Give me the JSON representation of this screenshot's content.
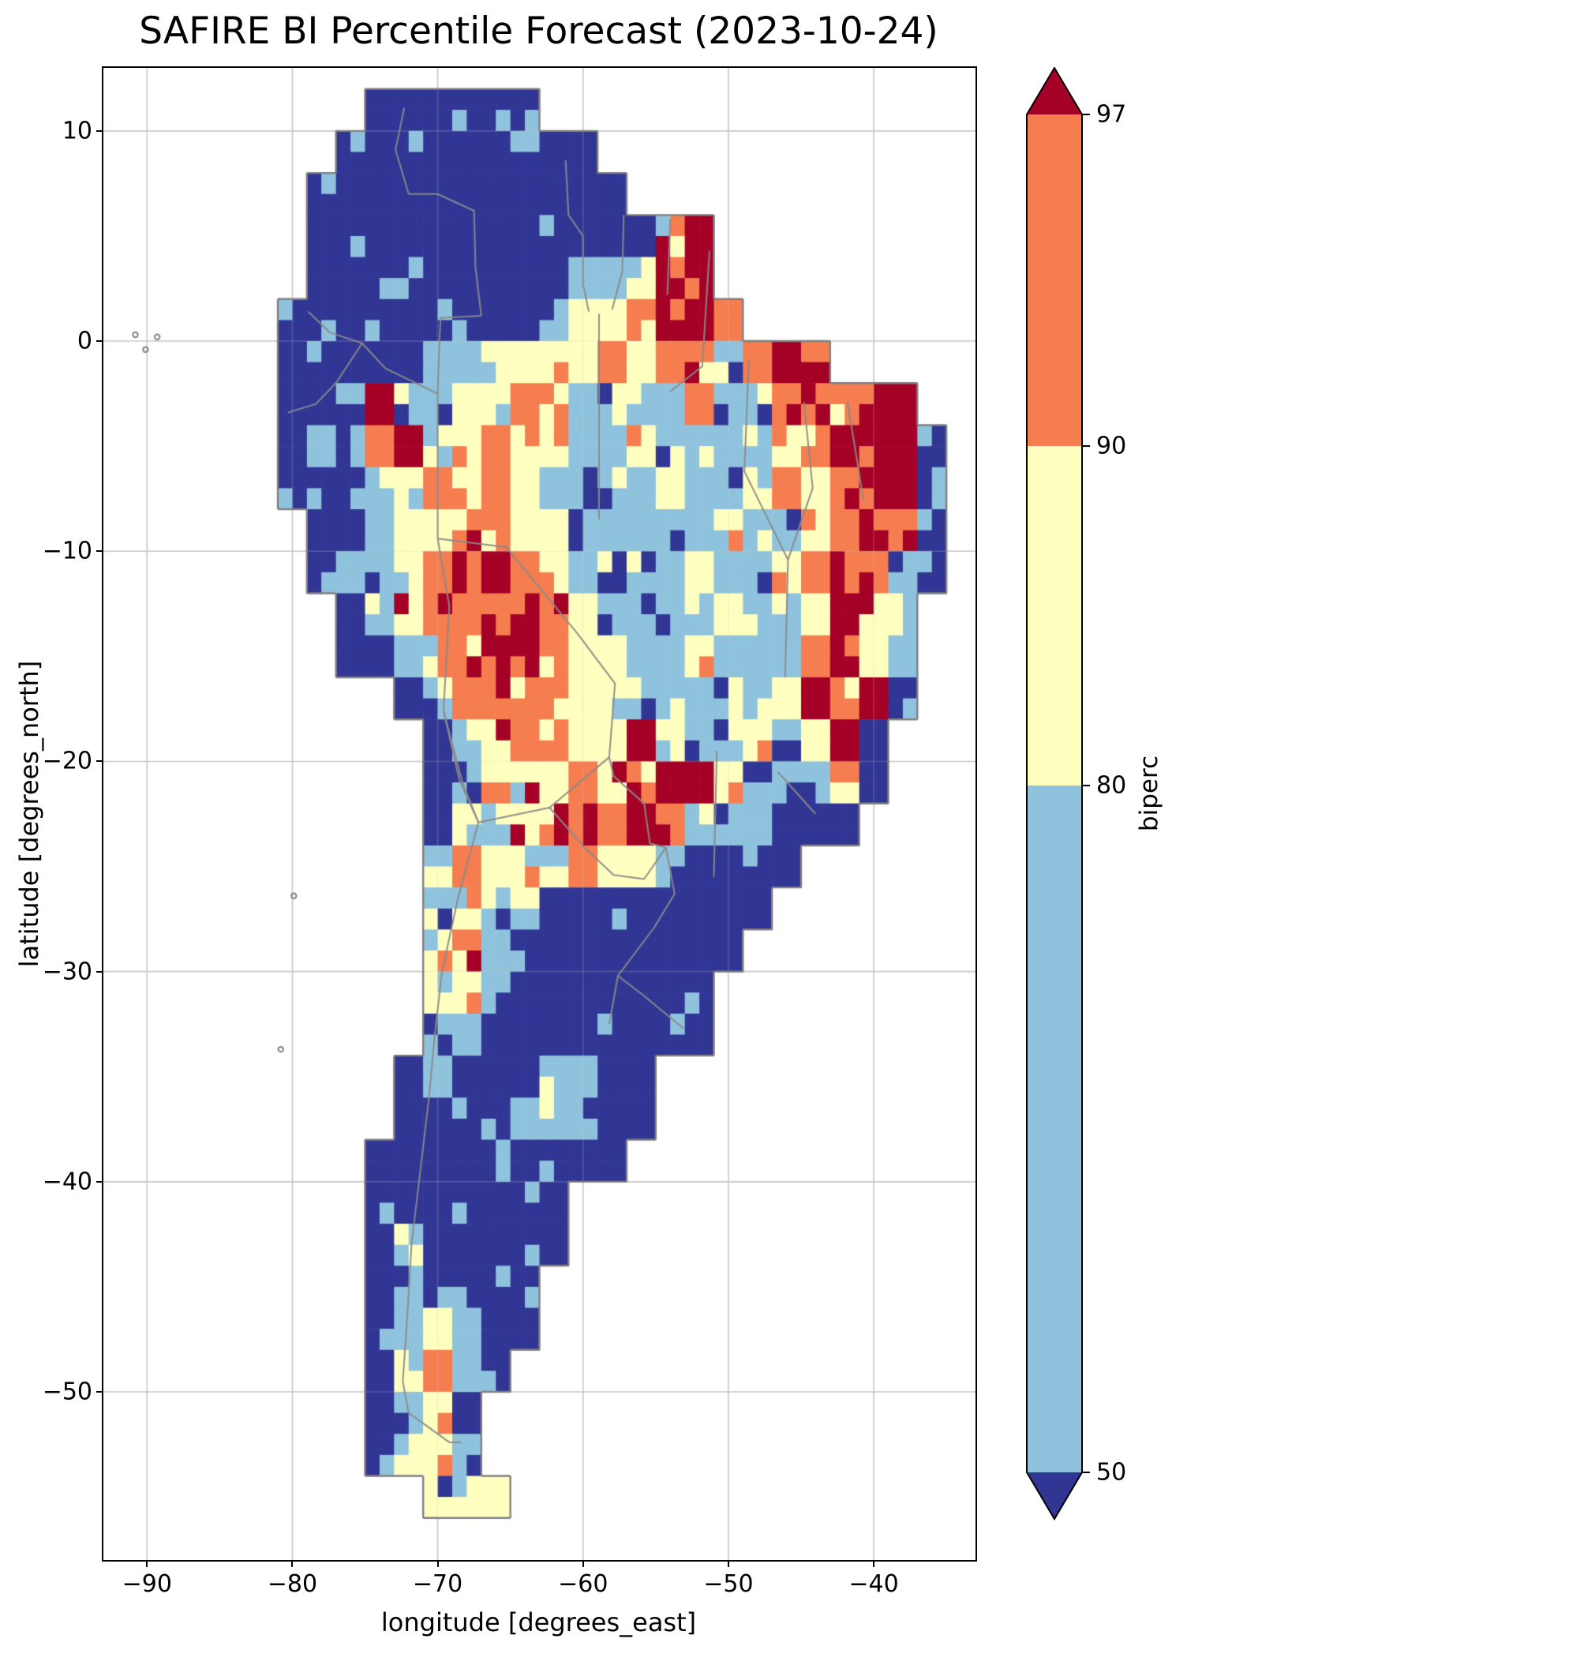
{
  "chart_data": {
    "type": "heatmap",
    "title": "SAFIRE BI Percentile Forecast (2023-10-24)",
    "xlabel": "longitude [degrees_east]",
    "ylabel": "latitude [degrees_north]",
    "xlim": [
      -93,
      -33
    ],
    "ylim": [
      -58,
      13
    ],
    "grid": true,
    "x_ticks": {
      "values": [
        -90,
        -80,
        -70,
        -60,
        -50,
        -40
      ],
      "labels": [
        "−90",
        "−80",
        "−70",
        "−60",
        "−50",
        "−40"
      ]
    },
    "y_ticks": {
      "values": [
        10,
        0,
        -10,
        -20,
        -30,
        -40,
        -50
      ],
      "labels": [
        "10",
        "0",
        "−10",
        "−20",
        "−30",
        "−40",
        "−50"
      ]
    },
    "colorbar": {
      "label": "biperc",
      "levels": [
        50,
        80,
        90,
        97
      ],
      "tick_labels": [
        "50",
        "80",
        "90",
        "97"
      ],
      "extend": "both",
      "colors": {
        "below_50": "#313695",
        "50_80": "#8fc3dd",
        "80_90": "#ffffbf",
        "90_97": "#f57d4f",
        "above_97": "#a50026"
      }
    },
    "map": {
      "region": "South America",
      "coastline_color": "#808080",
      "border_color": "#8a8a8a",
      "grid_color": "#c9c9c9",
      "cell_deg": 2,
      "origin": {
        "lon": -93,
        "lat": 12
      },
      "classes": {
        ".": "ocean",
        "0": "below_50",
        "1": "50_80",
        "2": "80_90",
        "3": "90_97",
        "4": "above_97"
      },
      "grid_rows": [
        ".........000000...............",
        "........000000000.............",
        ".......00000000000............",
        ".......00000000000024.........",
        ".......00000000011244.........",
        "......0000000001223443........",
        "......0000011222232331343.....",
        "......0014112232111131134344..",
        "......01134123221121111234440.",
        "......00012323211112112323440.",
        ".......0012233221111121123430.",
        ".......0112334321111211234310.",
        "........01233343211112112421..",
        "........00123443221121113421..",
        "..........013333221111124340..",
        "...........0123322421121240...",
        "...........0122232344211120...",
        "...........021233343211000....",
        "...........1322232210000......",
        "...........121100000000.......",
        "...........23100000000........",
        "...........2210000000.........",
        "...........1100000000.........",
        "..........010001100...........",
        "..........000011100...........",
        ".........000000000............",
        ".........0000000..............",
        ".........0100000..............",
        ".........011000...............",
        ".........012100...............",
        ".........02310................",
        ".........0120.................",
        ".........0221.................",
        "...........122................",
        ".............................."
      ],
      "borders": [
        [
          [
            -72.3,
            11.1
          ],
          [
            -72.9,
            9.1
          ],
          [
            -72.0,
            7.0
          ],
          [
            -70.0,
            7.0
          ],
          [
            -67.5,
            6.2
          ],
          [
            -67.4,
            3.5
          ],
          [
            -67.0,
            1.2
          ]
        ],
        [
          [
            -78.9,
            1.4
          ],
          [
            -77.4,
            0.4
          ],
          [
            -75.2,
            -0.1
          ],
          [
            -73.6,
            -1.3
          ],
          [
            -70.0,
            -2.5
          ],
          [
            -70.0,
            -9.4
          ]
        ],
        [
          [
            -67.0,
            1.2
          ],
          [
            -69.8,
            1.1
          ],
          [
            -69.9,
            -0.3
          ],
          [
            -70.0,
            -2.5
          ]
        ],
        [
          [
            -80.3,
            -3.4
          ],
          [
            -78.4,
            -3.0
          ],
          [
            -77.0,
            -2.0
          ],
          [
            -75.2,
            -0.1
          ]
        ],
        [
          [
            -70.0,
            -9.4
          ],
          [
            -65.3,
            -9.8
          ],
          [
            -60.4,
            -13.9
          ],
          [
            -57.8,
            -16.3
          ],
          [
            -58.2,
            -19.8
          ],
          [
            -62.3,
            -22.2
          ],
          [
            -67.2,
            -22.9
          ],
          [
            -68.5,
            -20.9
          ],
          [
            -69.6,
            -17.6
          ],
          [
            -69.2,
            -12.6
          ],
          [
            -70.0,
            -9.4
          ]
        ],
        [
          [
            -62.3,
            -22.2
          ],
          [
            -59.9,
            -24.1
          ],
          [
            -57.9,
            -25.4
          ],
          [
            -55.8,
            -25.6
          ],
          [
            -54.3,
            -24.1
          ],
          [
            -55.4,
            -23.9
          ],
          [
            -55.8,
            -22.0
          ],
          [
            -57.9,
            -20.7
          ],
          [
            -58.2,
            -19.8
          ]
        ],
        [
          [
            -69.6,
            -17.6
          ],
          [
            -68.3,
            -21.0
          ],
          [
            -67.2,
            -22.9
          ],
          [
            -68.6,
            -26.5
          ],
          [
            -69.7,
            -30.0
          ],
          [
            -70.2,
            -33.0
          ],
          [
            -70.6,
            -36.0
          ],
          [
            -71.2,
            -39.5
          ],
          [
            -71.8,
            -43.0
          ],
          [
            -72.1,
            -46.5
          ],
          [
            -72.4,
            -49.5
          ],
          [
            -72.0,
            -51.0
          ],
          [
            -69.2,
            -52.4
          ],
          [
            -68.4,
            -52.4
          ]
        ],
        [
          [
            -54.3,
            -24.1
          ],
          [
            -53.7,
            -26.3
          ],
          [
            -55.1,
            -27.9
          ],
          [
            -57.6,
            -30.2
          ],
          [
            -58.2,
            -32.5
          ]
        ],
        [
          [
            -57.6,
            -30.2
          ],
          [
            -55.9,
            -31.1
          ],
          [
            -53.1,
            -32.7
          ]
        ],
        [
          [
            -61.2,
            8.6
          ],
          [
            -61.0,
            6.0
          ],
          [
            -60.0,
            5.0
          ],
          [
            -60.0,
            2.7
          ],
          [
            -59.6,
            1.4
          ]
        ],
        [
          [
            -57.2,
            6.0
          ],
          [
            -57.3,
            3.3
          ],
          [
            -58.0,
            1.5
          ]
        ],
        [
          [
            -54.0,
            5.8
          ],
          [
            -54.2,
            2.2
          ]
        ],
        [
          [
            -58.9,
            1.3
          ],
          [
            -58.9,
            -8.5
          ]
        ],
        [
          [
            -51.3,
            4.3
          ],
          [
            -51.8,
            -1.2
          ],
          [
            -54.0,
            -2.4
          ]
        ],
        [
          [
            -48.6,
            -0.9
          ],
          [
            -48.9,
            -6.2
          ],
          [
            -45.9,
            -10.4
          ],
          [
            -46.1,
            -16.0
          ]
        ],
        [
          [
            -44.8,
            -2.9
          ],
          [
            -44.2,
            -7.0
          ],
          [
            -45.9,
            -10.4
          ]
        ],
        [
          [
            -41.8,
            -2.9
          ],
          [
            -40.7,
            -7.6
          ]
        ],
        [
          [
            -50.8,
            -19.5
          ],
          [
            -51.0,
            -25.5
          ]
        ],
        [
          [
            -46.6,
            -20.5
          ],
          [
            -44.0,
            -22.5
          ]
        ]
      ],
      "islands": [
        [
          -90.8,
          0.3
        ],
        [
          -90.1,
          -0.4
        ],
        [
          -89.3,
          0.2
        ],
        [
          -80.8,
          -33.7
        ],
        [
          -79.9,
          -26.4
        ]
      ]
    }
  }
}
